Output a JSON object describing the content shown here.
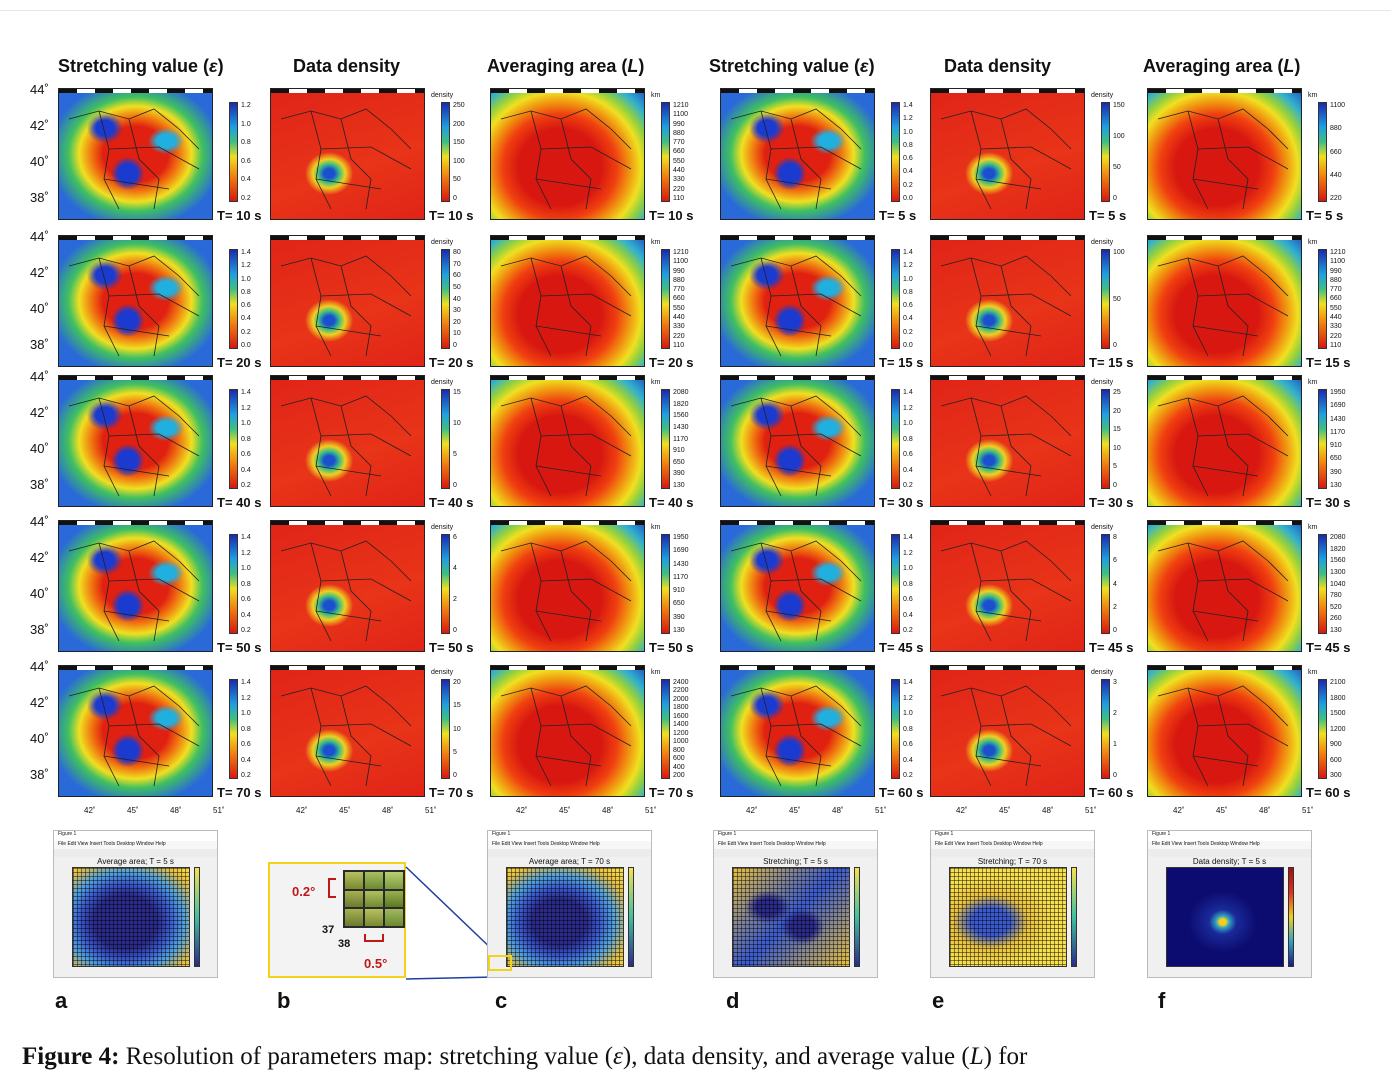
{
  "headers": {
    "stretching": "Stretching value (",
    "stretching_sym": "ε",
    "close": ")",
    "density": "Data density",
    "averaging": "Averaging area (",
    "averaging_sym": "L"
  },
  "lat_labels": [
    "44˚",
    "42˚",
    "40˚",
    "38˚"
  ],
  "lon_labels": [
    "42˚",
    "45˚",
    "48˚",
    "51˚"
  ],
  "density_unit": "density",
  "km_unit": "km",
  "rows": [
    {
      "left": [
        "T= 10 s",
        "T= 10 s",
        "T= 10 s"
      ],
      "right": [
        "T= 5 s",
        "T= 5 s",
        "T= 5 s"
      ],
      "ticks": {
        "s_left": [
          "1.2",
          "1.0",
          "0.8",
          "0.6",
          "0.4",
          "0.2"
        ],
        "d_left": [
          "250",
          "200",
          "150",
          "100",
          "50",
          "0"
        ],
        "a_left": [
          "1210",
          "1100",
          "990",
          "880",
          "770",
          "660",
          "550",
          "440",
          "330",
          "220",
          "110"
        ],
        "s_right": [
          "1.4",
          "1.2",
          "1.0",
          "0.8",
          "0.6",
          "0.4",
          "0.2",
          "0.0"
        ],
        "d_right": [
          "150",
          "100",
          "50",
          "0"
        ],
        "a_right": [
          "1100",
          "880",
          "660",
          "440",
          "220"
        ]
      }
    },
    {
      "left": [
        "T= 20 s",
        "T= 20 s",
        "T= 20 s"
      ],
      "right": [
        "T= 15 s",
        "T= 15 s",
        "T= 15 s"
      ],
      "ticks": {
        "s_left": [
          "1.4",
          "1.2",
          "1.0",
          "0.8",
          "0.6",
          "0.4",
          "0.2",
          "0.0"
        ],
        "d_left": [
          "80",
          "70",
          "60",
          "50",
          "40",
          "30",
          "20",
          "10",
          "0"
        ],
        "a_left": [
          "1210",
          "1100",
          "990",
          "880",
          "770",
          "660",
          "550",
          "440",
          "330",
          "220",
          "110"
        ],
        "s_right": [
          "1.4",
          "1.2",
          "1.0",
          "0.8",
          "0.6",
          "0.4",
          "0.2",
          "0.0"
        ],
        "d_right": [
          "100",
          "50",
          "0"
        ],
        "a_right": [
          "1210",
          "1100",
          "990",
          "880",
          "770",
          "660",
          "550",
          "440",
          "330",
          "220",
          "110"
        ]
      }
    },
    {
      "left": [
        "T= 40 s",
        "T= 40 s",
        "T= 40 s"
      ],
      "right": [
        "T= 30 s",
        "T= 30 s",
        "T= 30 s"
      ],
      "ticks": {
        "s_left": [
          "1.4",
          "1.2",
          "1.0",
          "0.8",
          "0.6",
          "0.4",
          "0.2"
        ],
        "d_left": [
          "15",
          "10",
          "5",
          "0"
        ],
        "a_left": [
          "2080",
          "1820",
          "1560",
          "1430",
          "1170",
          "910",
          "650",
          "390",
          "130"
        ],
        "s_right": [
          "1.4",
          "1.2",
          "1.0",
          "0.8",
          "0.6",
          "0.4",
          "0.2"
        ],
        "d_right": [
          "25",
          "20",
          "15",
          "10",
          "5",
          "0"
        ],
        "a_right": [
          "1950",
          "1690",
          "1430",
          "1170",
          "910",
          "650",
          "390",
          "130"
        ]
      }
    },
    {
      "left": [
        "T= 50 s",
        "T= 50 s",
        "T= 50 s"
      ],
      "right": [
        "T= 45 s",
        "T= 45 s",
        "T= 45 s"
      ],
      "ticks": {
        "s_left": [
          "1.4",
          "1.2",
          "1.0",
          "0.8",
          "0.6",
          "0.4",
          "0.2"
        ],
        "d_left": [
          "6",
          "4",
          "2",
          "0"
        ],
        "a_left": [
          "1950",
          "1690",
          "1430",
          "1170",
          "910",
          "650",
          "390",
          "130"
        ],
        "s_right": [
          "1.4",
          "1.2",
          "1.0",
          "0.8",
          "0.6",
          "0.4",
          "0.2"
        ],
        "d_right": [
          "8",
          "6",
          "4",
          "2",
          "0"
        ],
        "a_right": [
          "2080",
          "1820",
          "1560",
          "1300",
          "1040",
          "780",
          "520",
          "260",
          "130"
        ]
      }
    },
    {
      "left": [
        "T= 70 s",
        "T= 70 s",
        "T= 70 s"
      ],
      "right": [
        "T= 60 s",
        "T= 60 s",
        "T= 60 s"
      ],
      "ticks": {
        "s_left": [
          "1.4",
          "1.2",
          "1.0",
          "0.8",
          "0.6",
          "0.4",
          "0.2"
        ],
        "d_left": [
          "20",
          "15",
          "10",
          "5",
          "0"
        ],
        "a_left": [
          "2400",
          "2200",
          "2000",
          "1800",
          "1600",
          "1400",
          "1200",
          "1000",
          "800",
          "600",
          "400",
          "200"
        ],
        "s_right": [
          "1.4",
          "1.2",
          "1.0",
          "0.8",
          "0.6",
          "0.4",
          "0.2"
        ],
        "d_right": [
          "3",
          "2",
          "1",
          "0"
        ],
        "a_right": [
          "2100",
          "1800",
          "1500",
          "1200",
          "900",
          "600",
          "300"
        ]
      }
    }
  ],
  "thumbs": {
    "window_title": "Figure 1",
    "menu": "File  Edit  View  Insert  Tools  Desktop  Window  Help",
    "a": "Average area; T = 5 s",
    "c": "Average area; T = 70 s",
    "d": "Stretching; T = 5 s",
    "e": "Stretching; T = 70 s",
    "f": "Data density; T = 5 s"
  },
  "zoom": {
    "cell_h": "0.2°",
    "cell_w": "0.5°",
    "num37": "37",
    "num38": "38"
  },
  "letters": [
    "a",
    "b",
    "c",
    "d",
    "e",
    "f"
  ],
  "caption": {
    "label": "Figure 4:",
    "text1": " Resolution of parameters map: stretching value (",
    "sym1": "ε",
    "text2": "), data density, and average value (",
    "sym2": "L",
    "text3": ") for"
  }
}
